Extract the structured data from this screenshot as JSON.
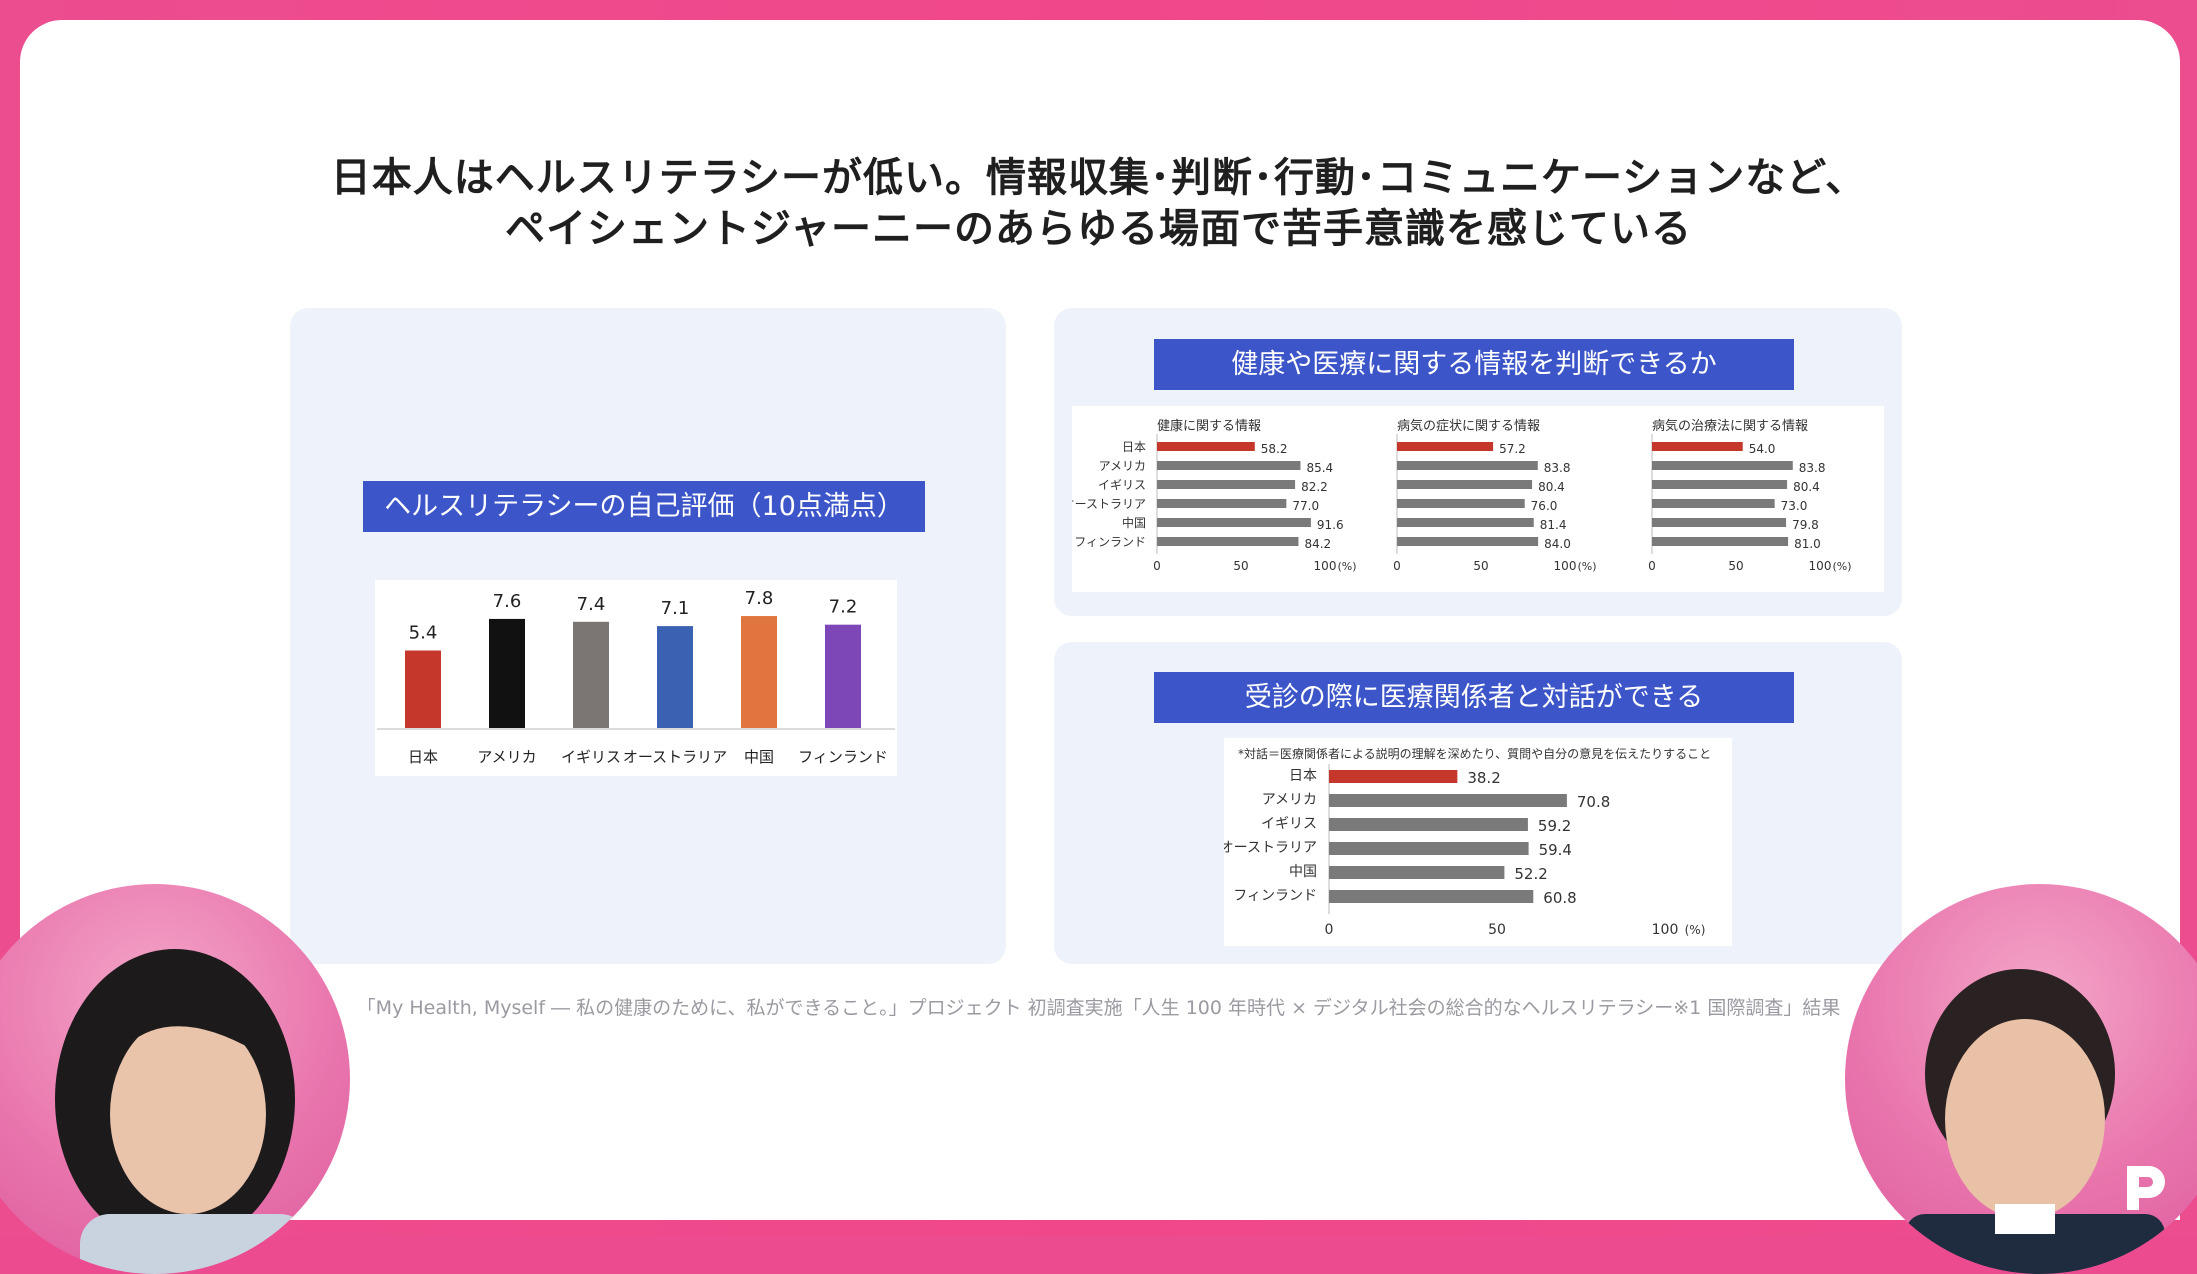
{
  "slide": {
    "title_line1": "日本人はヘルスリテラシーが低い。情報収集･判断･行動･コミュニケーションなど、",
    "title_line2": "ペイシェントジャーニーのあらゆる場面で苦手意識を感じている",
    "source": "「My Health, Myself ― 私の健康のために、私ができること。」プロジェクト 初調査実施「人生 100 年時代 × デジタル社会の総合的なヘルスリテラシー※1 国際調査」結果"
  },
  "colors": {
    "accent_red": "#c6372b",
    "bar_gray": "#7a7a7a",
    "banner_blue": "#3c55c8",
    "frame_pink": "#ec4d8f"
  },
  "chart_data": [
    {
      "type": "bar",
      "title": "ヘルスリテラシーの自己評価（10点満点）",
      "categories": [
        "日本",
        "アメリカ",
        "イギリス",
        "オーストラリア",
        "中国",
        "フィンランド"
      ],
      "values": [
        5.4,
        7.6,
        7.4,
        7.1,
        7.8,
        7.2
      ],
      "colors": [
        "#c6372b",
        "#111111",
        "#7b7574",
        "#3b62b2",
        "#e07540",
        "#7d47b8"
      ],
      "ylim": [
        0,
        10
      ],
      "grid": false
    },
    {
      "type": "bar",
      "orientation": "horizontal",
      "title": "健康や医療に関する情報を判断できるか",
      "categories": [
        "日本",
        "アメリカ",
        "イギリス",
        "オーストラリア",
        "中国",
        "フィンランド"
      ],
      "xlim": [
        0,
        100
      ],
      "xticks": [
        "0",
        "50",
        "100"
      ],
      "unit": "(%)",
      "series": [
        {
          "name": "健康に関する情報",
          "values": [
            58.2,
            85.4,
            82.2,
            77.0,
            91.6,
            84.2
          ],
          "labels": [
            "58.2",
            "85.4",
            "82.2",
            "77.0",
            "91.6",
            "84.2"
          ]
        },
        {
          "name": "病気の症状に関する情報",
          "values": [
            57.2,
            83.8,
            80.4,
            76.0,
            81.4,
            84.0
          ],
          "labels": [
            "57.2",
            "83.8",
            "80.4",
            "76.0",
            "81.4",
            "84.0"
          ]
        },
        {
          "name": "病気の治療法に関する情報",
          "values": [
            54.0,
            83.8,
            80.4,
            73.0,
            79.8,
            81.0
          ],
          "labels": [
            "54.0",
            "83.8",
            "80.4",
            "73.0",
            "79.8",
            "81.0"
          ]
        }
      ]
    },
    {
      "type": "bar",
      "orientation": "horizontal",
      "title": "受診の際に医療関係者と対話ができる",
      "note": "*対話＝医療関係者による説明の理解を深めたり、質問や自分の意見を伝えたりすること",
      "categories": [
        "日本",
        "アメリカ",
        "イギリス",
        "オーストラリア",
        "中国",
        "フィンランド"
      ],
      "values": [
        38.2,
        70.8,
        59.2,
        59.4,
        52.2,
        60.8
      ],
      "labels": [
        "38.2",
        "70.8",
        "59.2",
        "59.4",
        "52.2",
        "60.8"
      ],
      "xlim": [
        0,
        100
      ],
      "xticks": [
        "0",
        "50",
        "100"
      ],
      "unit": "(%)"
    }
  ]
}
